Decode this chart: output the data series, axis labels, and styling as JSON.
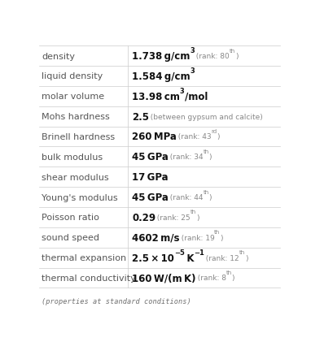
{
  "rows": [
    {
      "label": "density",
      "segments": [
        {
          "text": "1.738 g/cm",
          "bold": true,
          "size": "main",
          "color": "value",
          "super": "3",
          "super_color": "value"
        },
        {
          "text": " (rank: 80",
          "bold": false,
          "size": "rank",
          "color": "rank",
          "super": "th",
          "super_color": "rank"
        },
        {
          "text": ")",
          "bold": false,
          "size": "rank",
          "color": "rank",
          "super": "",
          "super_color": "rank"
        }
      ]
    },
    {
      "label": "liquid density",
      "segments": [
        {
          "text": "1.584 g/cm",
          "bold": true,
          "size": "main",
          "color": "value",
          "super": "3",
          "super_color": "value"
        }
      ]
    },
    {
      "label": "molar volume",
      "segments": [
        {
          "text": "13.98 cm",
          "bold": true,
          "size": "main",
          "color": "value",
          "super": "3",
          "super_color": "value"
        },
        {
          "text": "/mol",
          "bold": true,
          "size": "main",
          "color": "value",
          "super": "",
          "super_color": "value"
        }
      ]
    },
    {
      "label": "Mohs hardness",
      "segments": [
        {
          "text": "2.5",
          "bold": true,
          "size": "main",
          "color": "value",
          "super": "",
          "super_color": "value"
        },
        {
          "text": " (between gypsum and calcite)",
          "bold": false,
          "size": "rank",
          "color": "rank",
          "super": "",
          "super_color": "rank"
        }
      ]
    },
    {
      "label": "Brinell hardness",
      "segments": [
        {
          "text": "260 MPa",
          "bold": true,
          "size": "main",
          "color": "value",
          "super": "",
          "super_color": "value"
        },
        {
          "text": " (rank: 43",
          "bold": false,
          "size": "rank",
          "color": "rank",
          "super": "rd",
          "super_color": "rank"
        },
        {
          "text": ")",
          "bold": false,
          "size": "rank",
          "color": "rank",
          "super": "",
          "super_color": "rank"
        }
      ]
    },
    {
      "label": "bulk modulus",
      "segments": [
        {
          "text": "45 GPa",
          "bold": true,
          "size": "main",
          "color": "value",
          "super": "",
          "super_color": "value"
        },
        {
          "text": " (rank: 34",
          "bold": false,
          "size": "rank",
          "color": "rank",
          "super": "th",
          "super_color": "rank"
        },
        {
          "text": ")",
          "bold": false,
          "size": "rank",
          "color": "rank",
          "super": "",
          "super_color": "rank"
        }
      ]
    },
    {
      "label": "shear modulus",
      "segments": [
        {
          "text": "17 GPa",
          "bold": true,
          "size": "main",
          "color": "value",
          "super": "",
          "super_color": "value"
        }
      ]
    },
    {
      "label": "Young's modulus",
      "segments": [
        {
          "text": "45 GPa",
          "bold": true,
          "size": "main",
          "color": "value",
          "super": "",
          "super_color": "value"
        },
        {
          "text": " (rank: 44",
          "bold": false,
          "size": "rank",
          "color": "rank",
          "super": "th",
          "super_color": "rank"
        },
        {
          "text": ")",
          "bold": false,
          "size": "rank",
          "color": "rank",
          "super": "",
          "super_color": "rank"
        }
      ]
    },
    {
      "label": "Poisson ratio",
      "segments": [
        {
          "text": "0.29",
          "bold": true,
          "size": "main",
          "color": "value",
          "super": "",
          "super_color": "value"
        },
        {
          "text": " (rank: 25",
          "bold": false,
          "size": "rank",
          "color": "rank",
          "super": "th",
          "super_color": "rank"
        },
        {
          "text": ")",
          "bold": false,
          "size": "rank",
          "color": "rank",
          "super": "",
          "super_color": "rank"
        }
      ]
    },
    {
      "label": "sound speed",
      "segments": [
        {
          "text": "4602 m/s",
          "bold": true,
          "size": "main",
          "color": "value",
          "super": "",
          "super_color": "value"
        },
        {
          "text": " (rank: 19",
          "bold": false,
          "size": "rank",
          "color": "rank",
          "super": "th",
          "super_color": "rank"
        },
        {
          "text": ")",
          "bold": false,
          "size": "rank",
          "color": "rank",
          "super": "",
          "super_color": "rank"
        }
      ]
    },
    {
      "label": "thermal expansion",
      "segments": [
        {
          "text": "2.5 × 10",
          "bold": true,
          "size": "main",
          "color": "value",
          "super": "−5",
          "super_color": "value"
        },
        {
          "text": " K",
          "bold": true,
          "size": "main",
          "color": "value",
          "super": "−1",
          "super_color": "value"
        },
        {
          "text": " (rank: 12",
          "bold": false,
          "size": "rank",
          "color": "rank",
          "super": "th",
          "super_color": "rank"
        },
        {
          "text": ")",
          "bold": false,
          "size": "rank",
          "color": "rank",
          "super": "",
          "super_color": "rank"
        }
      ]
    },
    {
      "label": "thermal conductivity",
      "segments": [
        {
          "text": "160 W/(m K)",
          "bold": true,
          "size": "main",
          "color": "value",
          "super": "",
          "super_color": "value"
        },
        {
          "text": " (rank: 8",
          "bold": false,
          "size": "rank",
          "color": "rank",
          "super": "th",
          "super_color": "rank"
        },
        {
          "text": ")",
          "bold": false,
          "size": "rank",
          "color": "rank",
          "super": "",
          "super_color": "rank"
        }
      ]
    }
  ],
  "footer": "(properties at standard conditions)",
  "bg_color": "#ffffff",
  "line_color": "#cccccc",
  "label_color": "#555555",
  "value_color": "#111111",
  "rank_color": "#888888",
  "footer_color": "#707070",
  "col_split": 0.368,
  "main_fontsize": 8.5,
  "rank_fontsize": 6.5,
  "super_main_size": 6.0,
  "super_rank_size": 5.0,
  "label_fontsize": 8.0
}
